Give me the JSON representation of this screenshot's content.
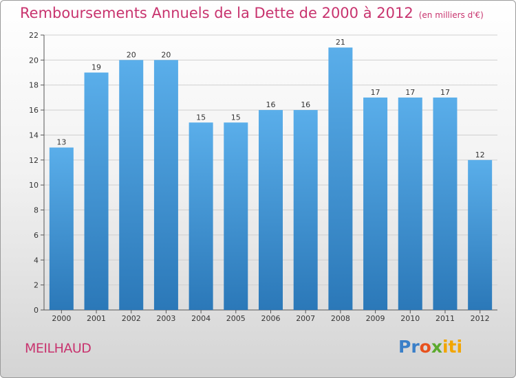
{
  "header": {
    "title": "Remboursements Annuels de la Dette de 2000 à 2012",
    "subtitle": "(en milliers d'€)"
  },
  "footer": {
    "town": "MEILHAUD",
    "logo": [
      "Pr",
      "o",
      "x",
      "iti"
    ]
  },
  "colors": {
    "title": "#c8336e",
    "bar_top": "#5aaeea",
    "bar_bottom": "#2b78b8",
    "grid": "#cfcfcf"
  },
  "chart_data": {
    "type": "bar",
    "title": "Remboursements Annuels de la Dette de 2000 à 2012",
    "subtitle": "(en milliers d'€)",
    "categories": [
      "2000",
      "2001",
      "2002",
      "2003",
      "2004",
      "2005",
      "2006",
      "2007",
      "2008",
      "2009",
      "2010",
      "2011",
      "2012"
    ],
    "values": [
      13,
      19,
      20,
      20,
      15,
      15,
      16,
      16,
      21,
      17,
      17,
      17,
      12
    ],
    "ylim": [
      0,
      22
    ],
    "yticks": [
      0,
      2,
      4,
      6,
      8,
      10,
      12,
      14,
      16,
      18,
      20,
      22
    ],
    "grid": true,
    "data_labels": true
  }
}
